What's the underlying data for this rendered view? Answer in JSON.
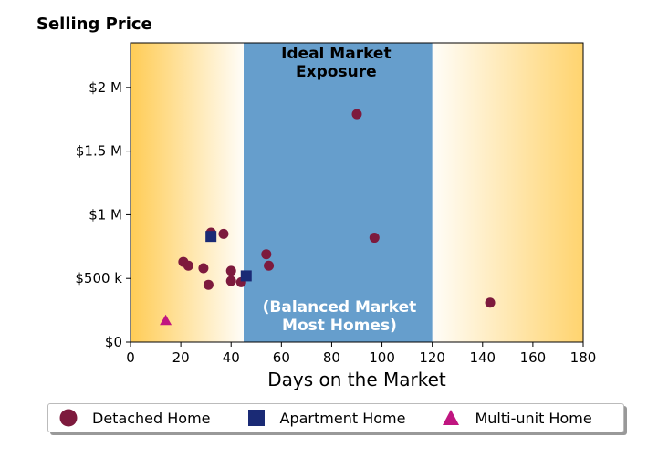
{
  "chart_data": {
    "type": "scatter",
    "title": "Selling Price",
    "xlabel": "Days on the Market",
    "ylabel": "",
    "xlim": [
      0,
      180
    ],
    "ylim": [
      0,
      2350000
    ],
    "x_ticks": [
      0,
      20,
      40,
      60,
      80,
      100,
      120,
      140,
      160,
      180
    ],
    "x_tick_labels": [
      "0",
      "20",
      "40",
      "60",
      "80",
      "100",
      "120",
      "140",
      "160",
      "180"
    ],
    "y_ticks": [
      0,
      500000,
      1000000,
      1500000,
      2000000
    ],
    "y_tick_labels": [
      "$0",
      "$500 k",
      "$1 M",
      "$1.5 M",
      "$2 M"
    ],
    "grid": false,
    "legend_position": "bottom",
    "zones": [
      {
        "x_range": [
          0,
          45
        ],
        "label_lines": [],
        "color": "#ffcc55",
        "fill": "gradient-left"
      },
      {
        "x_range": [
          45,
          120
        ],
        "label_lines": [
          "Ideal Market",
          "Exposure"
        ],
        "color": "#669ecc",
        "fill": "solid",
        "label_position": "top"
      },
      {
        "x_range": [
          120,
          180
        ],
        "label_lines": [],
        "color": "#ffcc55",
        "fill": "gradient-right"
      }
    ],
    "annotations": [
      {
        "lines": [
          "(Balanced Market",
          "Most Homes)"
        ],
        "color": "#ffffff",
        "x": 82,
        "y": 230000
      }
    ],
    "series": [
      {
        "name": "Detached Home",
        "marker": "circle",
        "color": "#7d1a3d",
        "points": [
          [
            21,
            630000
          ],
          [
            23,
            600000
          ],
          [
            29,
            580000
          ],
          [
            31,
            450000
          ],
          [
            32,
            860000
          ],
          [
            37,
            850000
          ],
          [
            40,
            560000
          ],
          [
            40,
            480000
          ],
          [
            44,
            470000
          ],
          [
            54,
            690000
          ],
          [
            55,
            600000
          ],
          [
            90,
            1790000
          ],
          [
            97,
            820000
          ],
          [
            143,
            310000
          ]
        ]
      },
      {
        "name": "Apartment Home",
        "marker": "square",
        "color": "#1a2a75",
        "points": [
          [
            32,
            830000
          ],
          [
            46,
            520000
          ]
        ]
      },
      {
        "name": "Multi-unit Home",
        "marker": "triangle",
        "color": "#c01580",
        "points": [
          [
            14,
            170000
          ]
        ]
      }
    ]
  }
}
